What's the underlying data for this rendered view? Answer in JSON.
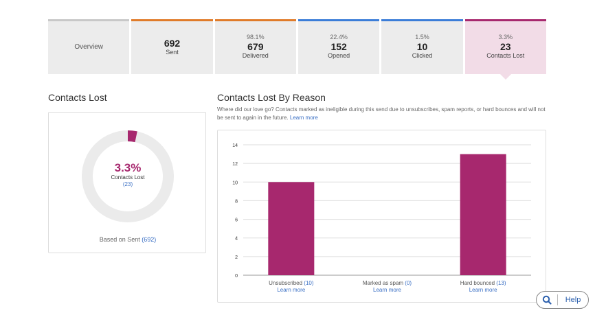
{
  "tabs": [
    {
      "key": "overview",
      "pct": "",
      "num": "",
      "label": "Overview",
      "bar_color": "#c8c8c8"
    },
    {
      "key": "sent",
      "pct": "",
      "num": "692",
      "label": "Sent",
      "bar_color": "#e07b29"
    },
    {
      "key": "delivered",
      "pct": "98.1%",
      "num": "679",
      "label": "Delivered",
      "bar_color": "#e07b29"
    },
    {
      "key": "opened",
      "pct": "22.4%",
      "num": "152",
      "label": "Opened",
      "bar_color": "#3b7dd8"
    },
    {
      "key": "clicked",
      "pct": "1.5%",
      "num": "10",
      "label": "Clicked",
      "bar_color": "#3b7dd8"
    },
    {
      "key": "contacts_lost",
      "pct": "3.3%",
      "num": "23",
      "label": "Contacts Lost",
      "bar_color": "#a7286e"
    }
  ],
  "left": {
    "title": "Contacts Lost",
    "donut": {
      "fraction": 0.033,
      "pct_text": "3.3%",
      "label": "Contacts Lost",
      "count_text": "(23)",
      "color": "#a7286e",
      "track_color": "#ebebeb"
    },
    "based_prefix": "Based on Sent",
    "based_link": "(692)"
  },
  "right": {
    "title": "Contacts Lost By Reason",
    "description": "Where did our love go? Contacts marked as ineligible during this send due to unsubscribes, spam reports, or hard bounces and will not be sent to again in the future.",
    "learn_more": "Learn more"
  },
  "chart_data": {
    "type": "bar",
    "categories": [
      "Unsubscribed",
      "Marked as spam",
      "Hard bounced"
    ],
    "category_counts": [
      "(10)",
      "(0)",
      "(13)"
    ],
    "category_links": [
      "Learn more",
      "Learn more",
      "Learn more"
    ],
    "values": [
      10,
      0,
      13
    ],
    "ylim": [
      0,
      14
    ],
    "yticks": [
      0,
      2,
      4,
      6,
      8,
      10,
      12,
      14
    ],
    "grid": true,
    "bar_color": "#a7286e"
  },
  "help": {
    "label": "Help"
  },
  "colors": {
    "accent": "#a7286e",
    "link": "#3a6fc4"
  }
}
